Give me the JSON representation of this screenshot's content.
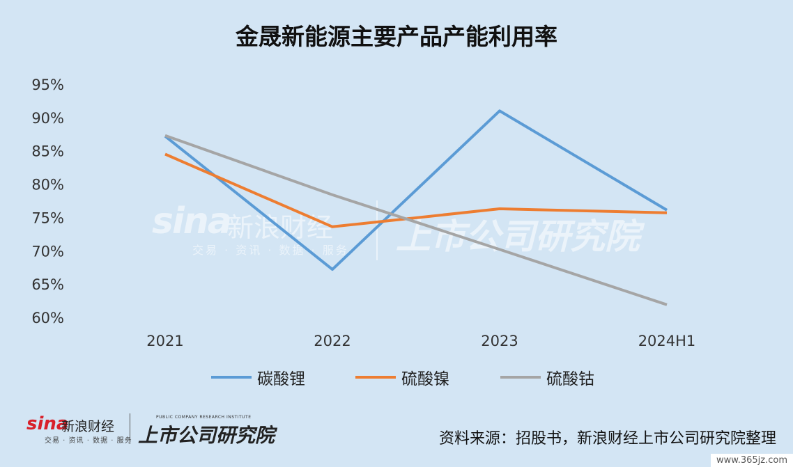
{
  "title": "金晟新能源主要产品产能利用率",
  "chart_data": {
    "type": "line",
    "categories": [
      "2021",
      "2022",
      "2023",
      "2024H1"
    ],
    "series": [
      {
        "name": "碳酸锂",
        "values": [
          87.2,
          67.2,
          91.0,
          76.1
        ],
        "color": "#5b9bd5"
      },
      {
        "name": "硫酸镍",
        "values": [
          84.5,
          73.6,
          76.3,
          75.7
        ],
        "color": "#ed7d31"
      },
      {
        "name": "硫酸钴",
        "values": [
          87.3,
          78.4,
          70.2,
          61.9
        ],
        "color": "#a5a5a5"
      }
    ],
    "ylim": [
      60,
      95
    ],
    "yticks": [
      "95%",
      "90%",
      "85%",
      "80%",
      "75%",
      "70%",
      "65%",
      "60%"
    ],
    "ytick_values": [
      95,
      90,
      85,
      80,
      75,
      70,
      65,
      60
    ],
    "grid": false,
    "legend": "bottom"
  },
  "watermark": {
    "sina": "sina",
    "cn": "新浪财经",
    "sub": "交易 · 资讯 · 数据 · 服务",
    "institute": "上市公司研究院"
  },
  "footer": {
    "sina": "sina",
    "cn": "新浪财经",
    "sub": "交易 · 资讯 · 数据 · 服务",
    "institute_en": "PUBLIC COMPANY RESEARCH INSTITUTE",
    "institute": "上市公司研究院",
    "source": "资料来源：招股书，新浪财经上市公司研究院整理"
  },
  "site": "www.365jz.com"
}
